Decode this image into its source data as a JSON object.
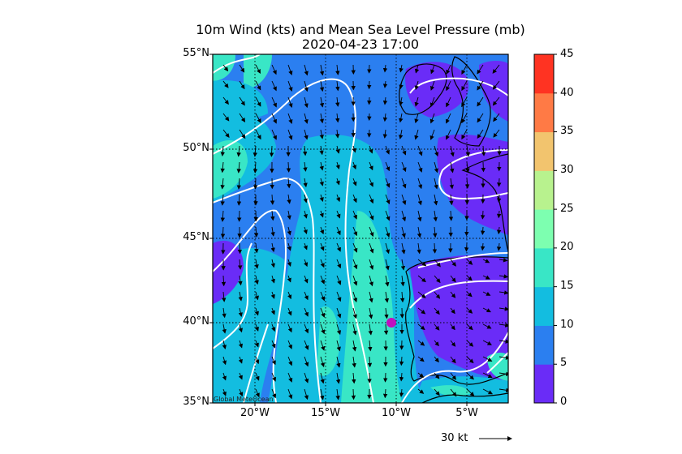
{
  "title_line1": "10m Wind (kts) and Mean Sea Level Pressure (mb)",
  "title_line2": "2020-04-23 17:00",
  "lat_labels": [
    "55°N",
    "50°N",
    "45°N",
    "40°N",
    "35°N"
  ],
  "lon_labels": [
    "20°W",
    "15°W",
    "10°W",
    "5°W"
  ],
  "colorbar": {
    "labels": [
      "0",
      "5",
      "10",
      "15",
      "20",
      "25",
      "30",
      "35",
      "40",
      "45"
    ],
    "colors": [
      "#6a2cf7",
      "#2b7ff0",
      "#13bde0",
      "#39e6c6",
      "#7dffb0",
      "#b8f28e",
      "#f2c46e",
      "#ff7a45",
      "#ff3322"
    ]
  },
  "credit": "Global MeteOcean",
  "scale_label": "30 kt",
  "marker_color": "#c010c0",
  "chart_data": {
    "type": "heatmap",
    "title": "10m Wind (kts) and Mean Sea Level Pressure (mb)",
    "subtitle": "2020-04-23 17:00",
    "lat_range": [
      35,
      55
    ],
    "lon_range": [
      -23,
      -2
    ],
    "colorbar_range": [
      0,
      45
    ],
    "colorbar_step": 5,
    "marker": {
      "lon": -10.3,
      "lat": 40.0
    },
    "reference_vector_kt": 30
  }
}
